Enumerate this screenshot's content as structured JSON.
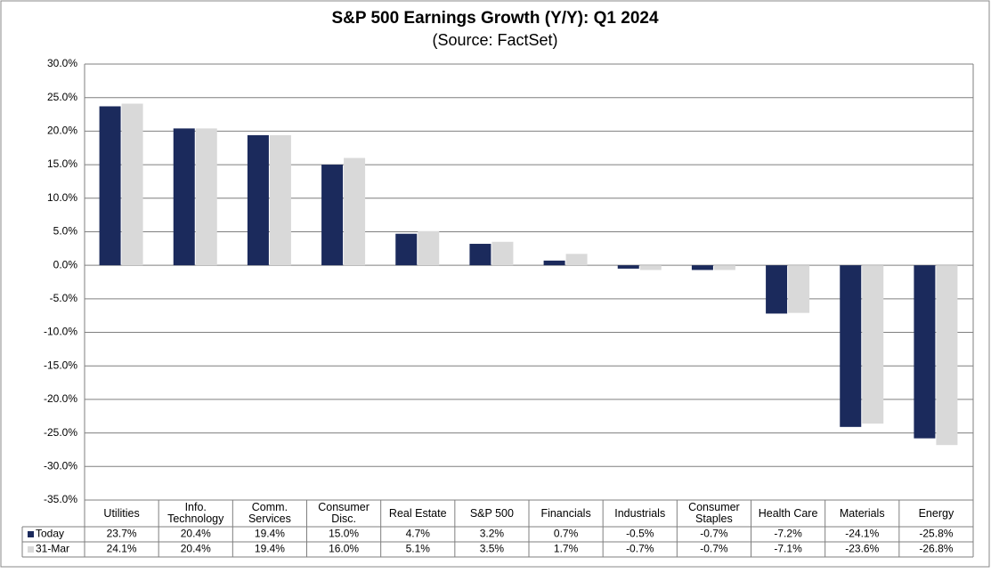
{
  "chart_data": {
    "type": "bar",
    "title": "S&P 500 Earnings Growth (Y/Y): Q1 2024",
    "subtitle": "(Source: FactSet)",
    "categories": [
      "Utilities",
      "Info. Technology",
      "Comm. Services",
      "Consumer Disc.",
      "Real Estate",
      "S&P 500",
      "Financials",
      "Industrials",
      "Consumer Staples",
      "Health Care",
      "Materials",
      "Energy"
    ],
    "series": [
      {
        "name": "Today",
        "color": "#1b2a5c",
        "values": [
          23.7,
          20.4,
          19.4,
          15.0,
          4.7,
          3.2,
          0.7,
          -0.5,
          -0.7,
          -7.2,
          -24.1,
          -25.8
        ],
        "value_labels": [
          "23.7%",
          "20.4%",
          "19.4%",
          "15.0%",
          "4.7%",
          "3.2%",
          "0.7%",
          "-0.5%",
          "-0.7%",
          "-7.2%",
          "-24.1%",
          "-25.8%"
        ]
      },
      {
        "name": "31-Mar",
        "color": "#d9d9d9",
        "values": [
          24.1,
          20.4,
          19.4,
          16.0,
          5.1,
          3.5,
          1.7,
          -0.7,
          -0.7,
          -7.1,
          -23.6,
          -26.8
        ],
        "value_labels": [
          "24.1%",
          "20.4%",
          "19.4%",
          "16.0%",
          "5.1%",
          "3.5%",
          "1.7%",
          "-0.7%",
          "-0.7%",
          "-7.1%",
          "-23.6%",
          "-26.8%"
        ]
      }
    ],
    "ylim": [
      -35,
      30
    ],
    "yticks": [
      {
        "value": -35,
        "label": "-35.0%"
      },
      {
        "value": -30,
        "label": "-30.0%"
      },
      {
        "value": -25,
        "label": "-25.0%"
      },
      {
        "value": -20,
        "label": "-20.0%"
      },
      {
        "value": -15,
        "label": "-15.0%"
      },
      {
        "value": -10,
        "label": "-10.0%"
      },
      {
        "value": -5,
        "label": "-5.0%"
      },
      {
        "value": 0,
        "label": "0.0%"
      },
      {
        "value": 5,
        "label": "5.0%"
      },
      {
        "value": 10,
        "label": "10.0%"
      },
      {
        "value": 15,
        "label": "15.0%"
      },
      {
        "value": 20,
        "label": "20.0%"
      },
      {
        "value": 25,
        "label": "25.0%"
      },
      {
        "value": 30,
        "label": "30.0%"
      }
    ],
    "grid": true
  }
}
